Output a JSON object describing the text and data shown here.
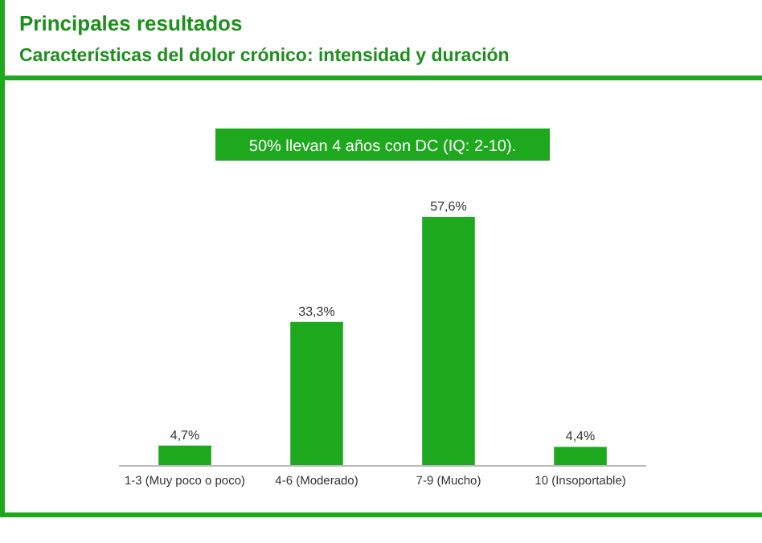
{
  "chart_data": {
    "type": "bar",
    "title": "Principales resultados",
    "subtitle": "Características del dolor crónico: intensidad y duración",
    "annotations": [
      "50% llevan 4 años con DC (IQ: 2-10)."
    ],
    "categories": [
      "1-3 (Muy poco o poco)",
      "4-6 (Moderado)",
      "7-9 (Mucho)",
      "10 (Insoportable)"
    ],
    "values": [
      4.7,
      33.3,
      57.6,
      4.4
    ],
    "value_labels": [
      "4,7%",
      "33,3%",
      "57,6%",
      "4,4%"
    ],
    "color": "#1ea81e"
  }
}
